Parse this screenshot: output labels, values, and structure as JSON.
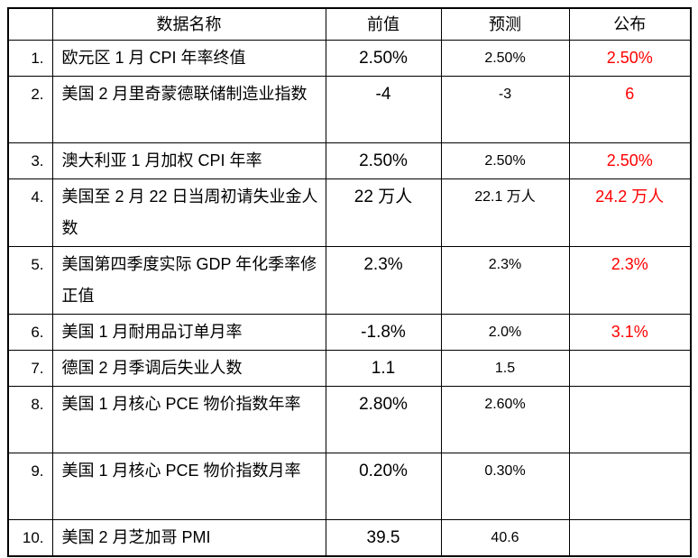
{
  "table": {
    "headers": {
      "index": "",
      "name": "数据名称",
      "previous": "前值",
      "forecast": "预测",
      "published": "公布"
    },
    "published_color": "#ff0000",
    "text_color": "#000000",
    "rows": [
      {
        "index": "1.",
        "name": "欧元区 1 月 CPI 年率终值",
        "previous": "2.50%",
        "forecast": "2.50%",
        "published": "2.50%"
      },
      {
        "index": "2.",
        "name": "美国 2 月里奇蒙德联储制造业指数",
        "previous": "-4",
        "forecast": "-3",
        "published": "6"
      },
      {
        "index": "3.",
        "name": "澳大利亚 1 月加权 CPI 年率",
        "previous": "2.50%",
        "forecast": "2.50%",
        "published": "2.50%"
      },
      {
        "index": "4.",
        "name": "美国至 2 月 22 日当周初请失业金人数",
        "previous": "22 万人",
        "forecast": "22.1 万人",
        "published": "24.2 万人"
      },
      {
        "index": "5.",
        "name": "美国第四季度实际 GDP 年化季率修正值",
        "previous": "2.3%",
        "forecast": "2.3%",
        "published": "2.3%"
      },
      {
        "index": "6.",
        "name": "美国 1 月耐用品订单月率",
        "previous": "-1.8%",
        "forecast": "2.0%",
        "published": "3.1%"
      },
      {
        "index": "7.",
        "name": "德国 2 月季调后失业人数",
        "previous": "1.1",
        "forecast": "1.5",
        "published": ""
      },
      {
        "index": "8.",
        "name": "美国 1 月核心 PCE 物价指数年率",
        "previous": "2.80%",
        "forecast": "2.60%",
        "published": ""
      },
      {
        "index": "9.",
        "name": "美国 1 月核心 PCE 物价指数月率",
        "previous": "0.20%",
        "forecast": "0.30%",
        "published": ""
      },
      {
        "index": "10.",
        "name": "美国 2 月芝加哥 PMI",
        "previous": "39.5",
        "forecast": "40.6",
        "published": ""
      }
    ]
  }
}
